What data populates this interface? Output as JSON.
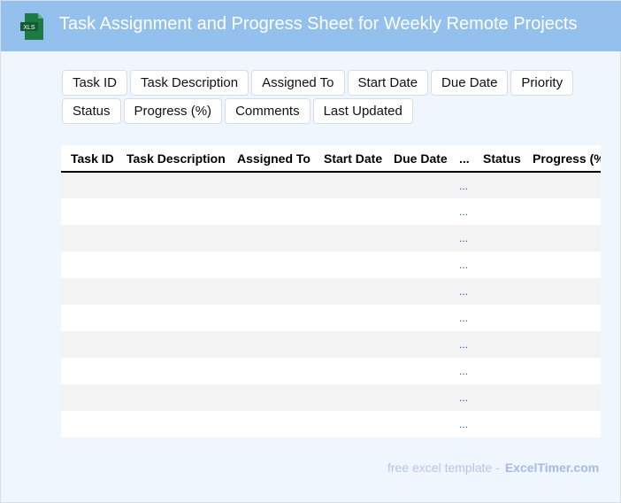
{
  "header": {
    "title": "Task Assignment and Progress Sheet for Weekly Remote Projects",
    "logo_text": "XLS",
    "logo_color": "#1d7a45"
  },
  "chips": [
    "Task ID",
    "Task Description",
    "Assigned To",
    "Start Date",
    "Due Date",
    "Priority",
    "Status",
    "Progress (%)",
    "Comments",
    "Last Updated"
  ],
  "table": {
    "columns": [
      "Task ID",
      "Task Description",
      "Assigned To",
      "Start Date",
      "Due Date",
      "...",
      "Status",
      "Progress (%)"
    ],
    "rows": [
      "...",
      "...",
      "...",
      "...",
      "...",
      "...",
      "...",
      "...",
      "...",
      "..."
    ]
  },
  "footer": {
    "text": "free excel template -",
    "brand": "ExcelTimer.com"
  }
}
